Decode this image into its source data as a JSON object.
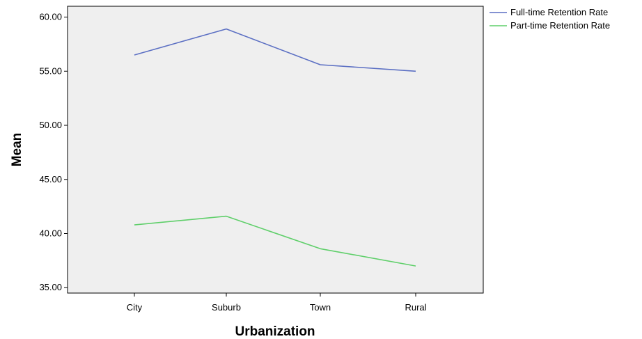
{
  "chart_data": {
    "type": "line",
    "title": "",
    "xlabel": "Urbanization",
    "ylabel": "Mean",
    "categories": [
      "City",
      "Suburb",
      "Town",
      "Rural"
    ],
    "ylim": [
      34.5,
      61.0
    ],
    "yticks": [
      "35.00",
      "40.00",
      "45.00",
      "50.00",
      "55.00",
      "60.00"
    ],
    "grid": false,
    "legend_position": "top-right",
    "series": [
      {
        "name": "Full-time Retention Rate",
        "color": "#5b6fc3",
        "values": [
          56.5,
          58.9,
          55.6,
          55.0
        ]
      },
      {
        "name": "Part-time Retention Rate",
        "color": "#5fcf6a",
        "values": [
          40.8,
          41.6,
          38.6,
          37.0
        ]
      }
    ]
  }
}
